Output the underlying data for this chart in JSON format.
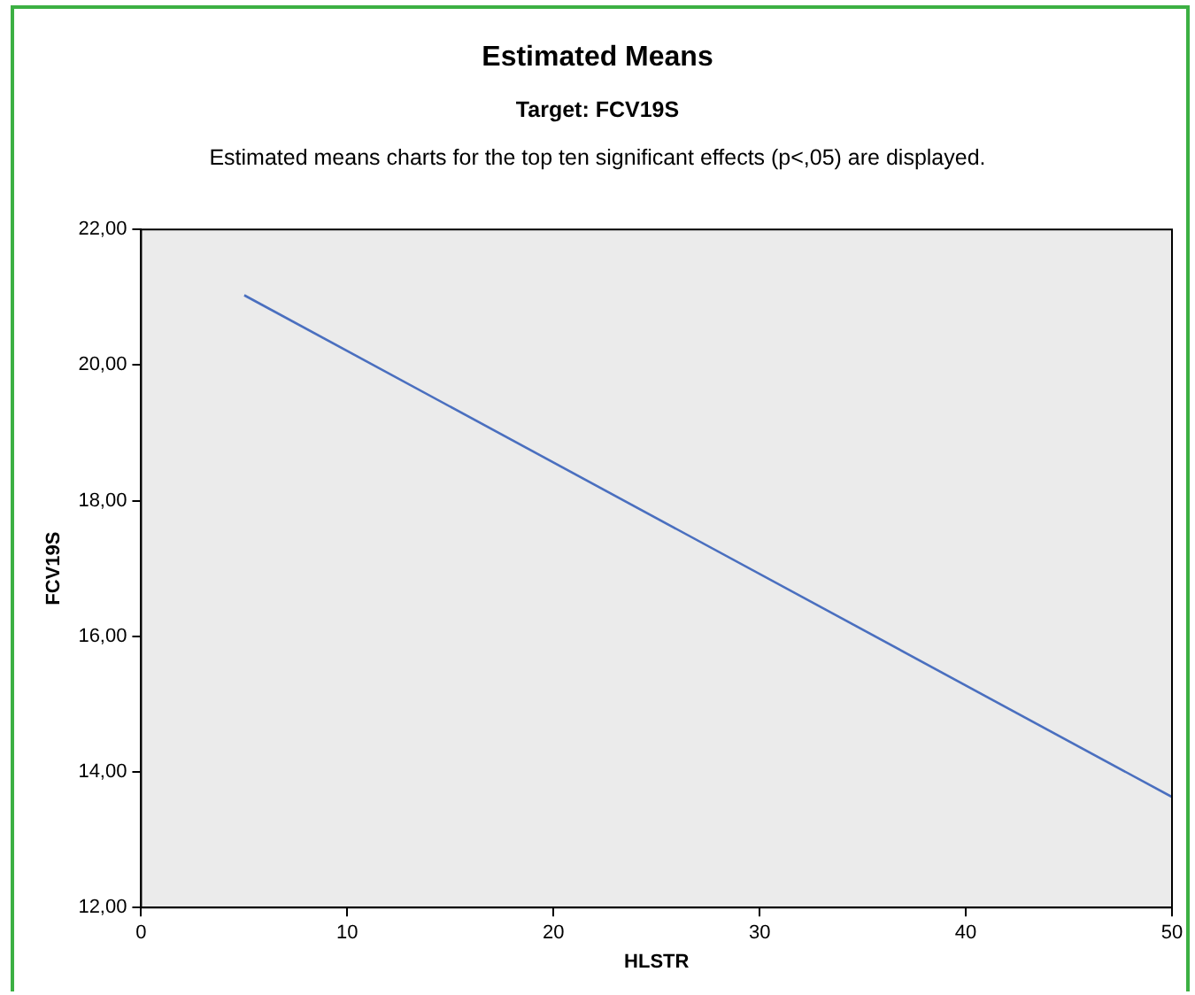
{
  "chart_data": {
    "type": "line",
    "title": "Estimated Means",
    "subtitle": "Target: FCV19S",
    "annotations": [
      "Estimated means charts for the top ten significant effects (p<,05) are displayed."
    ],
    "xlabel": "HLSTR",
    "ylabel": "FCV19S",
    "x": [
      5,
      50
    ],
    "series": [
      {
        "color": "#4a6fbf",
        "values": [
          21.03,
          13.63
        ]
      }
    ],
    "xlim": [
      0,
      50
    ],
    "xticks": [
      0,
      10,
      20,
      30,
      40,
      50
    ],
    "ylim": [
      12,
      22
    ],
    "yticks": [
      {
        "value": 12,
        "label": "12,00"
      },
      {
        "value": 14,
        "label": "14,00"
      },
      {
        "value": 16,
        "label": "16,00"
      },
      {
        "value": 18,
        "label": "18,00"
      },
      {
        "value": 20,
        "label": "20,00"
      },
      {
        "value": 22,
        "label": "22,00"
      }
    ],
    "grid": false,
    "legend": false,
    "marker": "none",
    "line_style": "solid"
  }
}
